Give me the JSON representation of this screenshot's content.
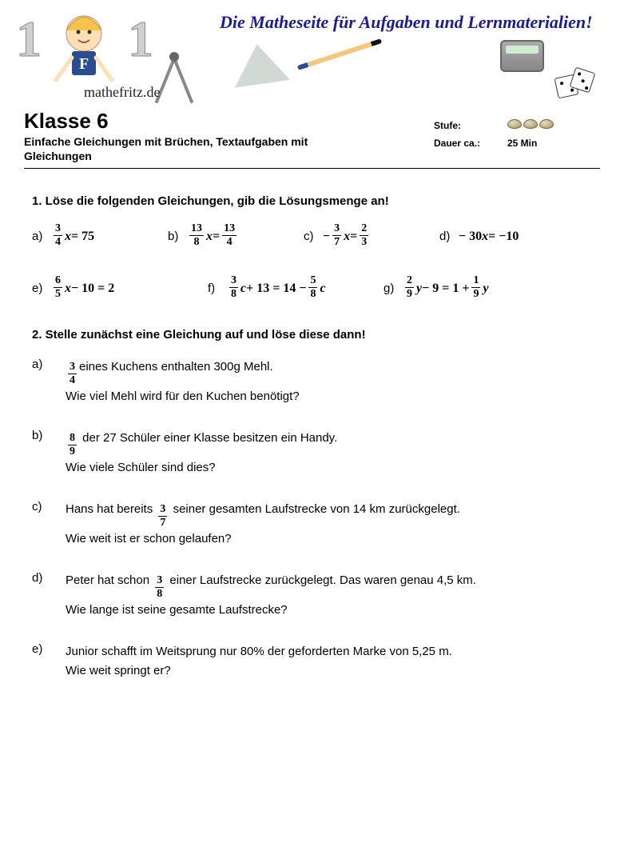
{
  "banner": {
    "tagline": "Die Matheseite für Aufgaben und Lernmaterialien!",
    "sitename": "mathefritz.de",
    "logo_letter": "F"
  },
  "header": {
    "grade_title": "Klasse 6",
    "subtitle": "Einfache Gleichungen mit Brüchen, Textaufgaben mit Gleichungen",
    "level_label": "Stufe:",
    "level_nut_count": 3,
    "duration_label": "Dauer ca.:",
    "duration_value": "25 Min"
  },
  "task1": {
    "heading": "1. Löse die folgenden Gleichungen, gib die Lösungsmenge an!",
    "items": [
      {
        "label": "a)",
        "frac_n": "3",
        "frac_d": "4",
        "after_frac": "x = 75",
        "prefix": ""
      },
      {
        "label": "b)",
        "frac_n": "13",
        "frac_d": "8",
        "after_frac": "x =",
        "prefix": "",
        "rhs_frac_n": "13",
        "rhs_frac_d": "4"
      },
      {
        "label": "c)",
        "frac_n": "3",
        "frac_d": "7",
        "after_frac": "x =",
        "prefix": "− ",
        "rhs_frac_n": "2",
        "rhs_frac_d": "3"
      },
      {
        "label": "d)",
        "plain": "− 30x = −10"
      }
    ],
    "items2": [
      {
        "label": "e)",
        "frac_n": "6",
        "frac_d": "5",
        "after_frac": "x − 10 = 2",
        "prefix": ""
      },
      {
        "label": "f)",
        "frac_n": "3",
        "frac_d": "8",
        "after_frac": "c + 13 = 14 − ",
        "prefix": "",
        "rhs_frac_n": "5",
        "rhs_frac_d": "8",
        "rhs_after": "c"
      },
      {
        "label": "g)",
        "frac_n": "2",
        "frac_d": "9",
        "after_frac": "y − 9 = 1 + ",
        "prefix": "",
        "rhs_frac_n": "1",
        "rhs_frac_d": "9",
        "rhs_after": "y"
      }
    ]
  },
  "task2": {
    "heading": "2. Stelle zunächst eine Gleichung auf und löse diese dann!",
    "items": [
      {
        "label": "a)",
        "frac_n": "3",
        "frac_d": "4",
        "line1_before": "",
        "line1_after": "eines Kuchens enthalten 300g Mehl.",
        "line2": "Wie viel Mehl wird für den Kuchen benötigt?"
      },
      {
        "label": "b)",
        "frac_n": "8",
        "frac_d": "9",
        "line1_before": "",
        "line1_after": " der 27 Schüler einer Klasse besitzen ein Handy.",
        "line2": "Wie viele Schüler sind dies?"
      },
      {
        "label": "c)",
        "frac_n": "3",
        "frac_d": "7",
        "line1_before": "Hans hat bereits ",
        "line1_after": "  seiner gesamten Laufstrecke von 14 km zurückgelegt.",
        "line2": "Wie weit ist er schon gelaufen?"
      },
      {
        "label": "d)",
        "frac_n": "3",
        "frac_d": "8",
        "line1_before": "Peter hat schon ",
        "line1_after": "  einer Laufstrecke zurückgelegt. Das waren genau 4,5 km.",
        "line2": "Wie lange ist seine gesamte Laufstrecke?"
      },
      {
        "label": "e)",
        "no_frac": true,
        "line1_before": "Junior schafft im Weitsprung nur 80% der geforderten Marke von 5,25 m.",
        "line1_after": "",
        "line2": "Wie weit springt er?"
      }
    ]
  }
}
